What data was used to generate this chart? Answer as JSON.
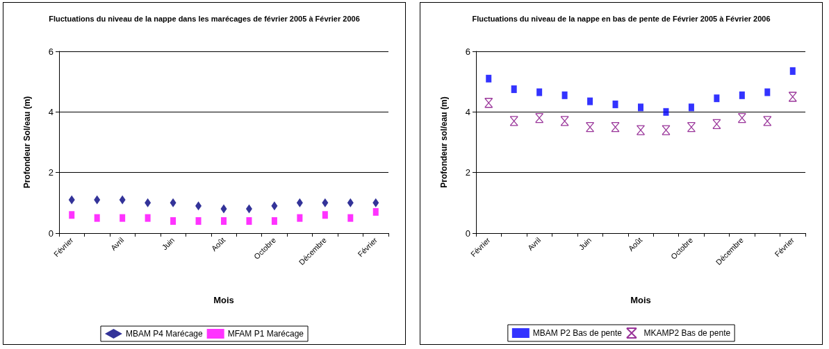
{
  "chart_data": [
    {
      "type": "scatter",
      "title": "Fluctuations du niveau de la nappe dans les marécages de février 2005 à Février 2006",
      "xlabel": "Mois",
      "ylabel": "Profondeur Sol/eau (m)",
      "categories": [
        "Février",
        null,
        "Avril",
        null,
        "Juin",
        null,
        "Août",
        null,
        "Octobre",
        null,
        "Décembre",
        null,
        "Février"
      ],
      "series": [
        {
          "name": "MBAM P4 Marécage",
          "color": "#000080",
          "marker": "diamond",
          "values": [
            1.1,
            1.1,
            1.1,
            1.0,
            1.0,
            0.9,
            0.8,
            0.8,
            0.9,
            1.0,
            1.0,
            1.0,
            1.0
          ]
        },
        {
          "name": "MFAM P1 Marécage",
          "color": "#ff00ff",
          "marker": "square",
          "values": [
            0.6,
            0.5,
            0.5,
            0.5,
            0.4,
            0.4,
            0.4,
            0.4,
            0.4,
            0.5,
            0.6,
            0.5,
            0.7
          ]
        }
      ],
      "ylim": [
        0,
        6
      ],
      "yticks": [
        0,
        2,
        4,
        6
      ],
      "grid": "y",
      "legend": "bottom"
    },
    {
      "type": "scatter",
      "title": "Fluctuations du niveau de la nappe en bas de pente de Février 2005 à Février 2006",
      "xlabel": "Mois",
      "ylabel": "Profondeur sol/eau (m)",
      "categories": [
        "Février",
        null,
        "Avril",
        null,
        "Juin",
        null,
        "Août",
        null,
        "Octobre",
        null,
        "Décembre",
        null,
        "Février"
      ],
      "series": [
        {
          "name": "MBAM P2 Bas de pente",
          "color": "#0000ff",
          "marker": "square",
          "values": [
            5.1,
            4.75,
            4.65,
            4.55,
            4.35,
            4.25,
            4.15,
            4.0,
            4.15,
            4.45,
            4.55,
            4.65,
            5.35
          ]
        },
        {
          "name": "MKAMP2 Bas de pente",
          "color": "#800080",
          "marker": "cross",
          "values": [
            4.3,
            3.7,
            3.8,
            3.7,
            3.5,
            3.5,
            3.4,
            3.4,
            3.5,
            3.6,
            3.8,
            3.7,
            4.5
          ]
        }
      ],
      "ylim": [
        0,
        6
      ],
      "yticks": [
        0,
        2,
        4,
        6
      ],
      "grid": "y",
      "legend": "bottom"
    }
  ]
}
